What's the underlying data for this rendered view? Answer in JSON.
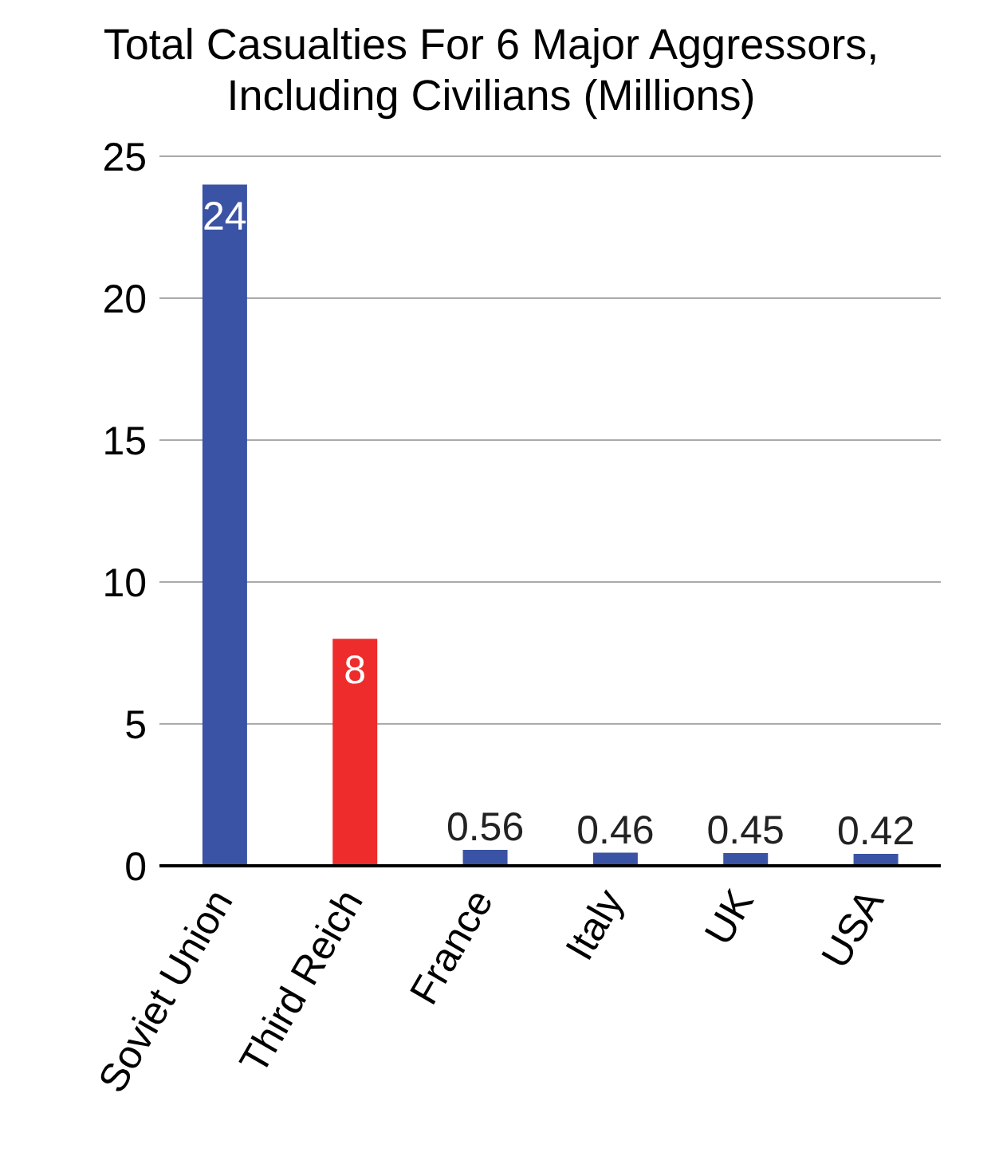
{
  "chart_data": {
    "type": "bar",
    "title": "Total Casualties For 6 Major Aggressors,\nIncluding Civilians (Millions)",
    "categories": [
      "Soviet Union",
      "Third Reich",
      "France",
      "Italy",
      "UK",
      "USA"
    ],
    "values": [
      24,
      8,
      0.56,
      0.46,
      0.45,
      0.42
    ],
    "colors": [
      "#3a53a4",
      "#ee2c2c",
      "#3a53a4",
      "#3a53a4",
      "#3a53a4",
      "#3a53a4"
    ],
    "ylim": [
      0,
      25
    ],
    "yticks": [
      0,
      5,
      10,
      15,
      20,
      25
    ],
    "grid": "y",
    "data_labels": true,
    "legend": false
  }
}
